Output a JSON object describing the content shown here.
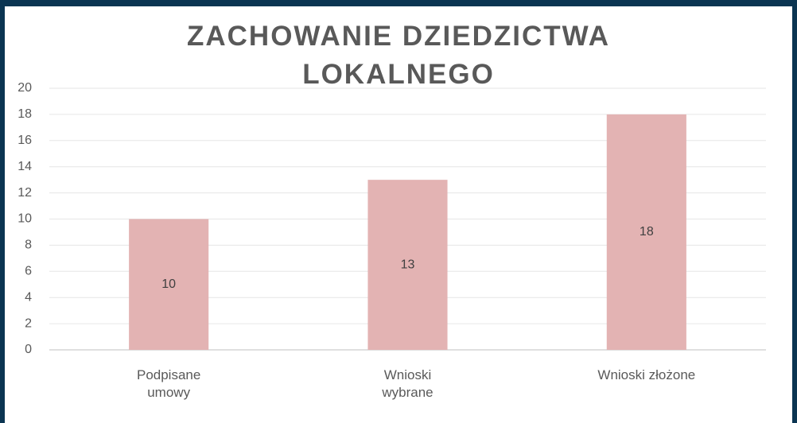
{
  "chart_data": {
    "type": "bar",
    "title": "ZACHOWANIE DZIEDZICTWA LOKALNEGO",
    "categories": [
      "Podpisane umowy",
      "Wnioski wybrane",
      "Wnioski złożone"
    ],
    "values": [
      10,
      13,
      18
    ],
    "color": "#e3b3b3",
    "ylim": [
      0,
      20
    ],
    "yticks": [
      0,
      2,
      4,
      6,
      8,
      10,
      12,
      14,
      16,
      18,
      20
    ],
    "grid": true
  }
}
